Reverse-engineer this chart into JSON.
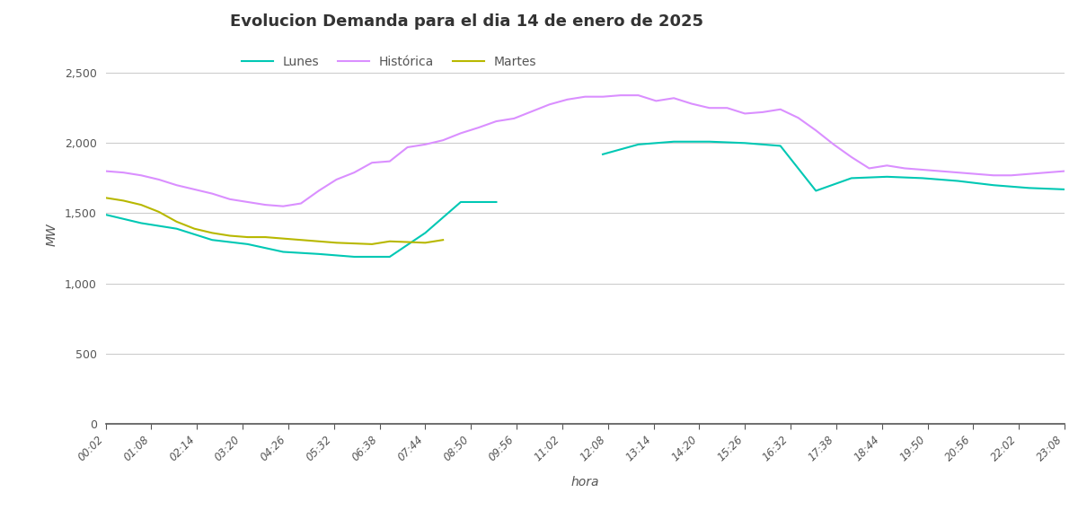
{
  "title": "Evolucion Demanda para el dia 14 de enero de 2025",
  "xlabel": "hora",
  "ylabel": "MW",
  "background_color": "#ffffff",
  "grid_color": "#cccccc",
  "ylim": [
    0,
    2700
  ],
  "yticks": [
    0,
    500,
    1000,
    1500,
    2000,
    2500
  ],
  "x_labels": [
    "00:02",
    "01:08",
    "02:14",
    "03:20",
    "04:26",
    "05:32",
    "06:38",
    "07:44",
    "08:50",
    "09:56",
    "11:02",
    "12:08",
    "13:14",
    "14:20",
    "15:26",
    "16:32",
    "17:38",
    "18:44",
    "19:50",
    "20:56",
    "22:02",
    "23:08"
  ],
  "lunes_color": "#00c8b4",
  "historica_color": "#da8fff",
  "martes_color": "#b8b800",
  "lunes": [
    1490,
    1430,
    1390,
    1310,
    1280,
    1225,
    1210,
    1190,
    1190,
    1360,
    1580,
    1580,
    null,
    null,
    1920,
    1990,
    2010,
    2010,
    2000,
    1980,
    1660,
    1750,
    1760,
    1750,
    1730,
    1700,
    1680,
    1670
  ],
  "historica": [
    1800,
    1790,
    1770,
    1740,
    1700,
    1670,
    1640,
    1600,
    1580,
    1560,
    1550,
    1570,
    1660,
    1740,
    1790,
    1860,
    1870,
    1970,
    1990,
    2020,
    2070,
    2110,
    2155,
    2175,
    2225,
    2275,
    2310,
    2330,
    2330,
    2340,
    2340,
    2300,
    2320,
    2280,
    2250,
    2250,
    2210,
    2220,
    2240,
    2180,
    2090,
    1990,
    1900,
    1820,
    1840,
    1820,
    1810,
    1800,
    1790,
    1780,
    1770,
    1770,
    1780,
    1790,
    1800
  ],
  "martes": [
    1610,
    1590,
    1560,
    1510,
    1440,
    1390,
    1360,
    1340,
    1330,
    1330,
    1320,
    1310,
    1300,
    1290,
    1285,
    1280,
    1300,
    1295,
    1290,
    1310,
    null,
    null,
    null,
    null,
    null,
    null,
    null,
    null,
    null,
    null,
    null,
    null,
    null,
    null,
    null,
    null,
    null,
    null,
    null,
    null,
    null,
    null,
    null,
    null,
    null,
    null,
    null,
    null,
    null,
    null,
    null,
    null,
    null,
    null,
    null
  ]
}
